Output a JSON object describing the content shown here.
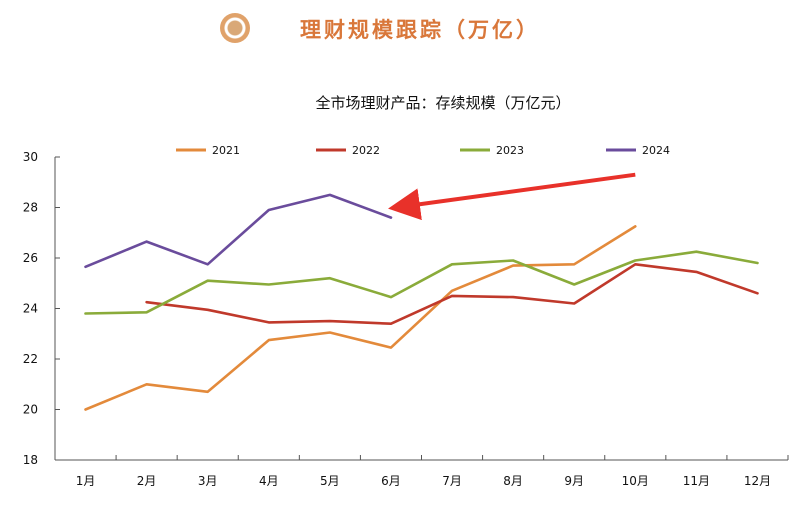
{
  "header": {
    "title": "理财规模跟踪（万亿）"
  },
  "colors": {
    "header_title": "#d9773a"
  },
  "chart_data": {
    "type": "line",
    "title": "全市场理财产品：存续规模（万亿元）",
    "xlabel": "",
    "ylabel": "",
    "categories": [
      "1月",
      "2月",
      "3月",
      "4月",
      "5月",
      "6月",
      "7月",
      "8月",
      "9月",
      "10月",
      "11月",
      "12月"
    ],
    "ylim": [
      18,
      30
    ],
    "yticks": [
      18,
      20,
      22,
      24,
      26,
      28,
      30
    ],
    "grid": false,
    "legend": "top",
    "series": [
      {
        "name": "2021",
        "color": "#e38a3b",
        "values": [
          20.0,
          21.0,
          20.7,
          22.75,
          23.05,
          22.45,
          24.7,
          25.7,
          25.75,
          27.25,
          null,
          null
        ]
      },
      {
        "name": "2022",
        "color": "#c0392b",
        "values": [
          null,
          24.25,
          23.95,
          23.45,
          23.5,
          23.4,
          24.5,
          24.45,
          24.2,
          25.75,
          25.45,
          24.6
        ]
      },
      {
        "name": "2023",
        "color": "#8aab3a",
        "values": [
          23.8,
          23.85,
          25.1,
          24.95,
          25.2,
          24.45,
          25.75,
          25.9,
          24.95,
          25.9,
          26.25,
          25.8
        ]
      },
      {
        "name": "2024",
        "color": "#6a4c9c",
        "values": [
          25.65,
          26.65,
          25.75,
          27.9,
          28.5,
          27.6,
          null,
          null,
          null,
          null,
          null,
          null
        ]
      }
    ],
    "annotation": {
      "type": "arrow",
      "color": "#e8312a",
      "from": {
        "x": "10月",
        "y": 29.3
      },
      "to": {
        "x": "6月",
        "y": 28.0
      }
    }
  }
}
